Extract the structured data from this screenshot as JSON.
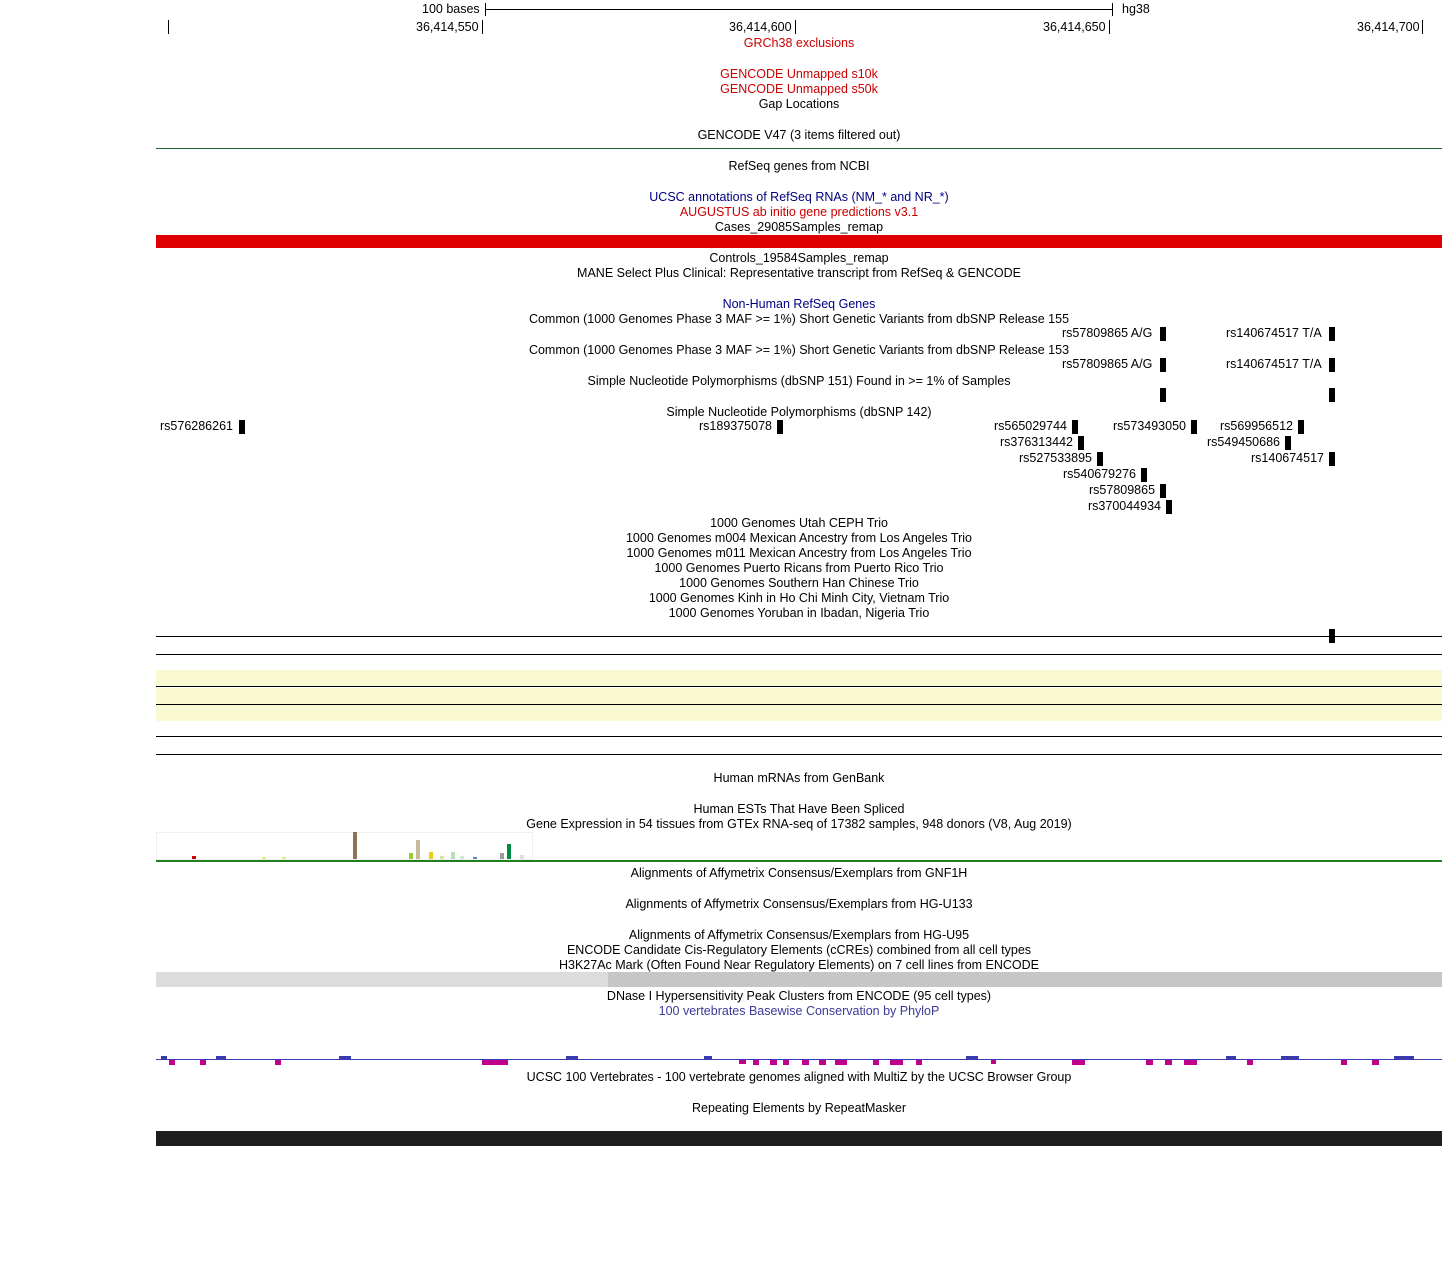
{
  "ruler": {
    "scale_label": "100 bases",
    "assembly": "hg38",
    "positions": [
      "36,414,550",
      "36,414,600",
      "36,414,650",
      "36,414,700"
    ]
  },
  "colors": {
    "exclusion_red": "#cc0000",
    "navy": "#000080",
    "gencode_green": "#1f5f1f",
    "cases_bar": "#dd0000",
    "yellow_band": "#fafad2",
    "phylop_text": "#3b3b99",
    "cons_blue": "#3b3bb0",
    "cons_magenta": "#c0008c",
    "repeat_bar": "#1e1e1e",
    "h3k27ac_light": "#dcdcdc",
    "h3k27ac_dark": "#c6c6c6"
  },
  "tracks": {
    "grch38_exclusions": "GRCh38 exclusions",
    "gencode_unmapped_s10k": "GENCODE Unmapped s10k",
    "gencode_unmapped_s50k": "GENCODE Unmapped s50k",
    "gap_locations": "Gap Locations",
    "gencode_v47": "GENCODE V47 (3 items filtered out)",
    "refseq_ncbi": "RefSeq genes from NCBI",
    "ucsc_refseq": "UCSC annotations of RefSeq RNAs (NM_* and NR_*)",
    "augustus": "AUGUSTUS ab initio gene predictions v3.1",
    "cases": "Cases_29085Samples_remap",
    "controls": "Controls_19584Samples_remap",
    "mane": "MANE Select Plus Clinical: Representative transcript from RefSeq & GENCODE",
    "nonhuman_refseq": "Non-Human RefSeq Genes",
    "dbsnp155": "Common (1000 Genomes Phase 3 MAF >= 1%) Short Genetic Variants from dbSNP Release 155",
    "dbsnp153": "Common (1000 Genomes Phase 3 MAF >= 1%) Short Genetic Variants from dbSNP Release 153",
    "dbsnp151": "Simple Nucleotide Polymorphisms (dbSNP 151) Found in >= 1% of Samples",
    "dbsnp142": "Simple Nucleotide Polymorphisms (dbSNP 142)",
    "trio_ceph": "1000 Genomes Utah CEPH Trio",
    "trio_m004": "1000 Genomes m004 Mexican Ancestry from Los Angeles Trio",
    "trio_m011": "1000 Genomes m011 Mexican Ancestry from Los Angeles Trio",
    "trio_pr": "1000 Genomes Puerto Ricans from Puerto Rico Trio",
    "trio_han": "1000 Genomes Southern Han Chinese Trio",
    "trio_kinh": "1000 Genomes Kinh in Ho Chi Minh City, Vietnam Trio",
    "trio_yoruban": "1000 Genomes Yoruban in Ibadan, Nigeria Trio",
    "mrna": "Human mRNAs from GenBank",
    "est": "Human ESTs That Have Been Spliced",
    "gtex": "Gene Expression in 54 tissues from GTEx RNA-seq of 17382 samples, 948 donors (V8, Aug 2019)",
    "gnf1h": "Alignments of Affymetrix Consensus/Exemplars from GNF1H",
    "hgu133": "Alignments of Affymetrix Consensus/Exemplars from HG-U133",
    "hgu95": "Alignments of Affymetrix Consensus/Exemplars from HG-U95",
    "encode_ccre": "ENCODE Candidate Cis-Regulatory Elements (cCREs) combined from all cell types",
    "h3k27ac": "H3K27Ac Mark (Often Found Near Regulatory Elements) on 7 cell lines from ENCODE",
    "dnase": "DNase I Hypersensitivity Peak Clusters from ENCODE (95 cell types)",
    "phylop": "100 vertebrates Basewise Conservation by PhyloP",
    "multiz": "UCSC 100 Vertebrates - 100 vertebrate genomes aligned with MultiZ by the UCSC Browser Group",
    "repeatmasker": "Repeating Elements by RepeatMasker"
  },
  "snps": {
    "dbsnp155_a": "rs57809865 A/G",
    "dbsnp155_b": "rs140674517 T/A",
    "dbsnp153_a": "rs57809865 A/G",
    "dbsnp153_b": "rs140674517 T/A",
    "s142": [
      "rs576286261",
      "rs189375078",
      "rs565029744",
      "rs573493050",
      "rs569956512",
      "rs376313442",
      "rs549450686",
      "rs527533895",
      "rs140674517",
      "rs540679276",
      "rs57809865",
      "rs370044934"
    ]
  }
}
